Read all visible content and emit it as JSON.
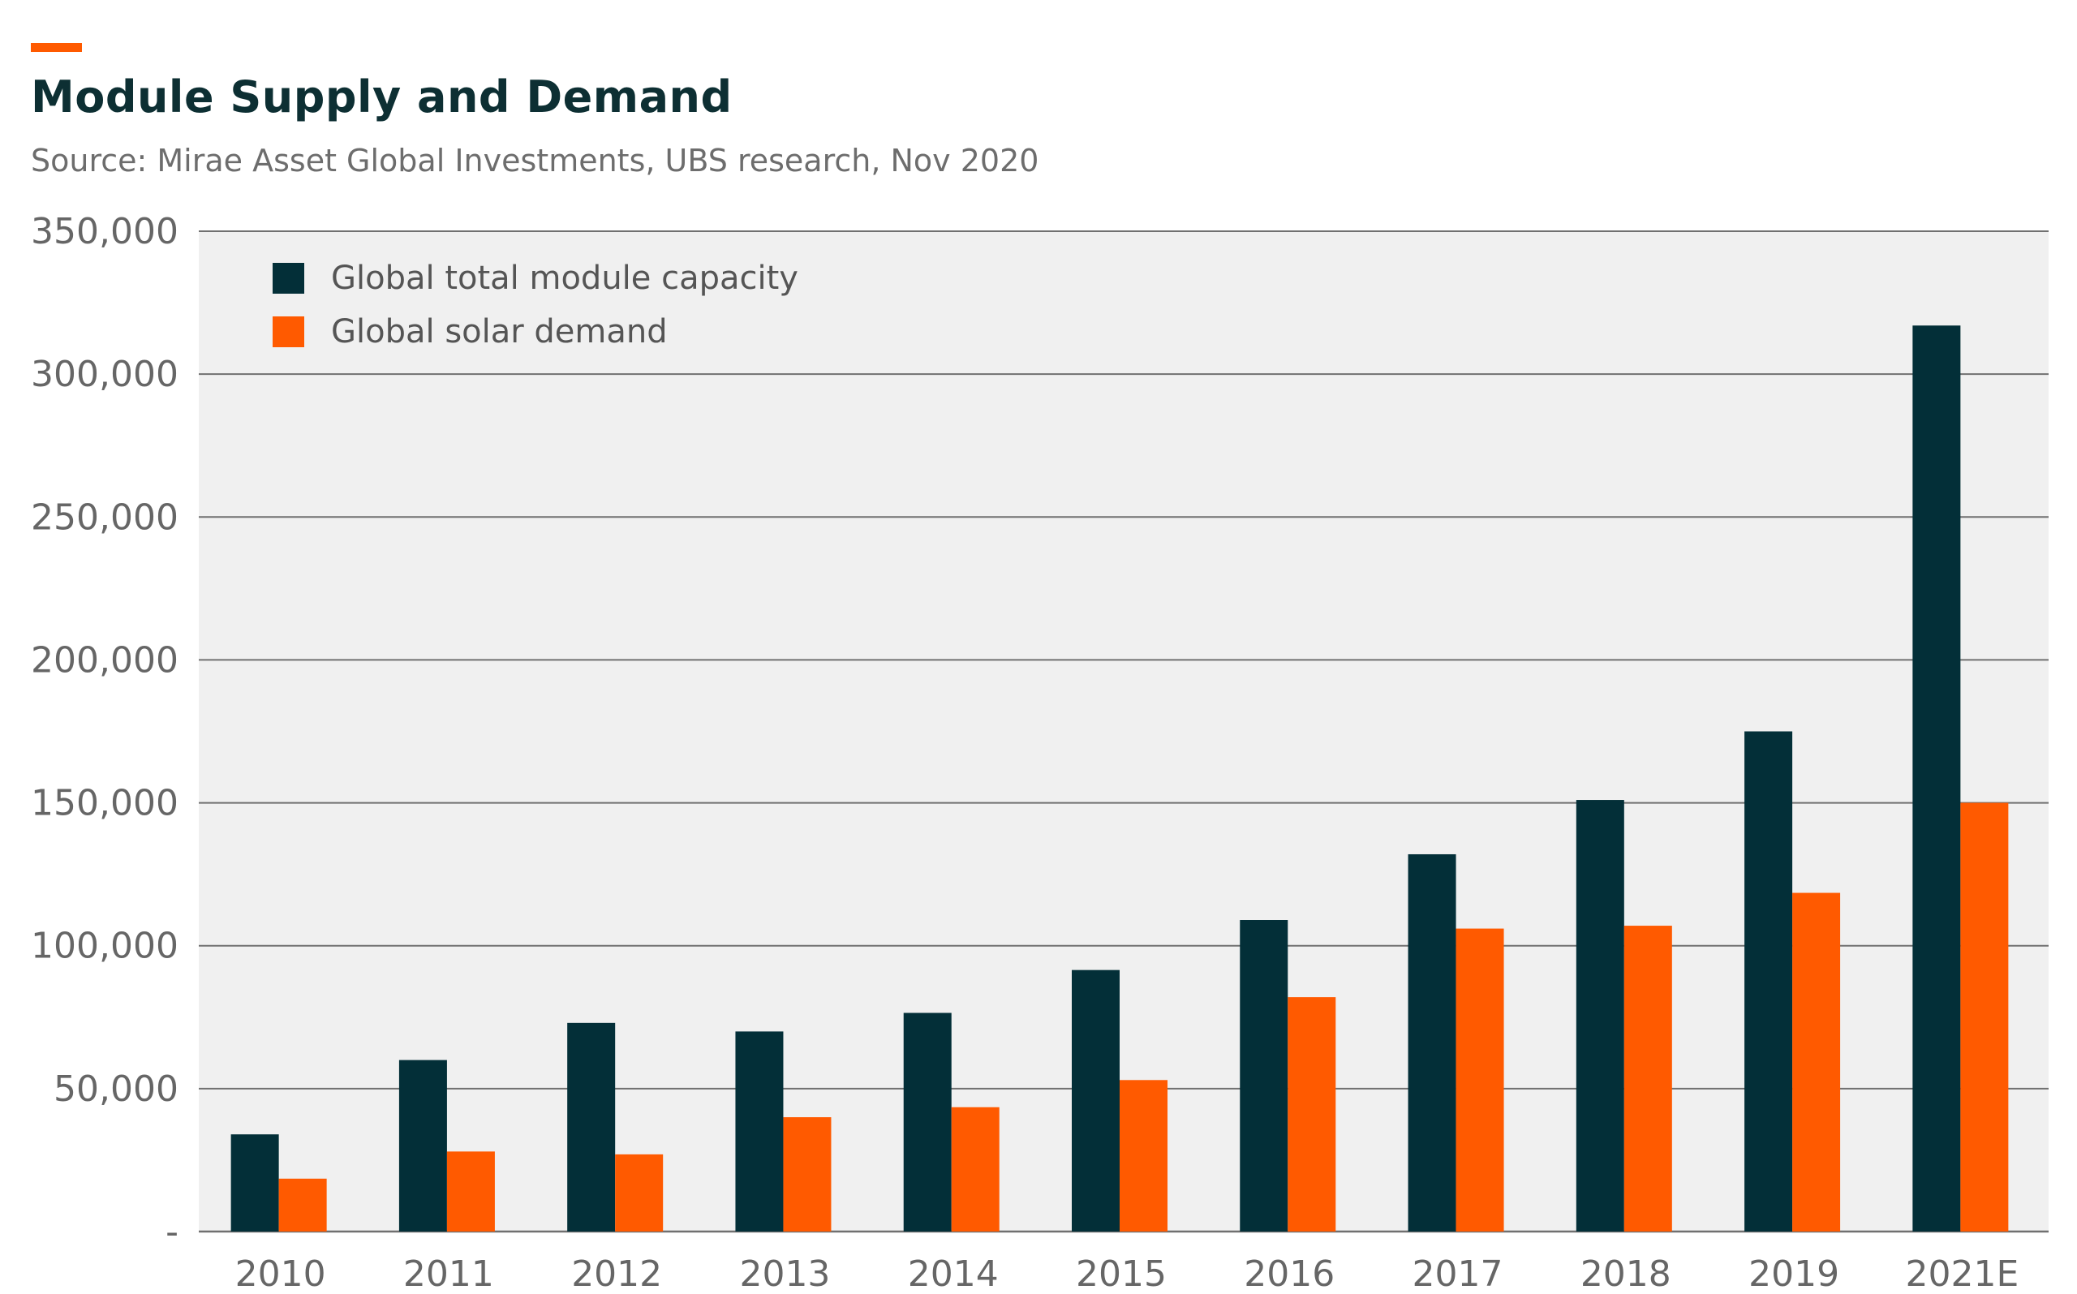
{
  "header": {
    "title": "Module Supply and Demand",
    "subtitle": "Source: Mirae Asset Global Investments, UBS research, Nov 2020"
  },
  "colors": {
    "accent": "#ff5a00",
    "capacity": "#032f38",
    "demand": "#ff5a00",
    "plot_background": "#f0f0f0",
    "gridline": "#707070"
  },
  "chart_data": {
    "type": "bar",
    "title": "Module Supply and Demand",
    "subtitle": "Source: Mirae Asset Global Investments, UBS research, Nov 2020",
    "xlabel": "",
    "ylabel": "",
    "categories": [
      "2010",
      "2011",
      "2012",
      "2013",
      "2014",
      "2015",
      "2016",
      "2017",
      "2018",
      "2019",
      "2021E"
    ],
    "series": [
      {
        "name": "Global total module capacity",
        "color": "#032f38",
        "values": [
          34000,
          60000,
          73000,
          70000,
          76500,
          91500,
          109000,
          132000,
          151000,
          175000,
          317000
        ]
      },
      {
        "name": "Global solar demand",
        "color": "#ff5a00",
        "values": [
          18500,
          28000,
          27000,
          40000,
          43500,
          53000,
          82000,
          106000,
          107000,
          118500,
          150000
        ]
      }
    ],
    "ylim": [
      0,
      350000
    ],
    "yticks": [
      0,
      50000,
      100000,
      150000,
      200000,
      250000,
      300000,
      350000
    ],
    "ytick_labels": [
      "-",
      "50,000",
      "100,000",
      "150,000",
      "200,000",
      "250,000",
      "300,000",
      "350,000"
    ],
    "grid": true,
    "legend_position": "top-left"
  }
}
